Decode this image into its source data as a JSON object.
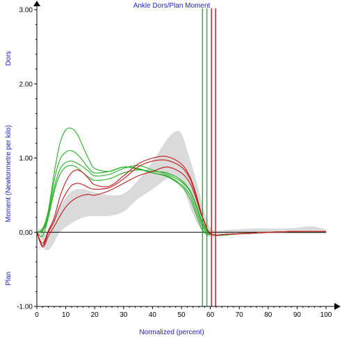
{
  "chart_data": {
    "type": "line",
    "title": "Ankle Dors/Plan Moment",
    "xlabel": "Normalized (percent)",
    "ylabel": "Moment (Newtonmetre per kilo)",
    "y_top_label": "Dors",
    "y_bottom_label": "Plan",
    "xlim": [
      0,
      100
    ],
    "ylim": [
      -1.0,
      3.0
    ],
    "x_ticks": [
      0,
      10,
      20,
      30,
      40,
      50,
      60,
      70,
      80,
      90,
      100
    ],
    "y_ticks": [
      -1.0,
      0.0,
      1.0,
      2.0,
      3.0
    ],
    "y_tick_labels": [
      "-1.00",
      "0.00",
      "1.00",
      "2.00",
      "3.00"
    ],
    "grid": false,
    "colors": {
      "green": "#22b022",
      "red": "#c01818",
      "band": "#dadada",
      "axis": "#000000",
      "text_blue": "#2020c8"
    },
    "normal_band": {
      "x": [
        0,
        2,
        3,
        5,
        8,
        12,
        16,
        20,
        25,
        30,
        35,
        40,
        45,
        48,
        50,
        52,
        55,
        58,
        60,
        62,
        65,
        70,
        75,
        80,
        85,
        90,
        95,
        100
      ],
      "upper": [
        0.02,
        0.05,
        -0.02,
        0.12,
        0.35,
        0.55,
        0.58,
        0.54,
        0.5,
        0.52,
        0.7,
        0.95,
        1.25,
        1.36,
        1.33,
        1.1,
        0.72,
        0.26,
        0.06,
        0.02,
        0.03,
        0.04,
        0.05,
        0.05,
        0.05,
        0.06,
        0.08,
        0.04
      ],
      "lower": [
        -0.02,
        -0.12,
        -0.24,
        -0.2,
        0.0,
        0.12,
        0.2,
        0.22,
        0.22,
        0.28,
        0.45,
        0.58,
        0.72,
        0.75,
        0.66,
        0.45,
        0.16,
        -0.03,
        -0.06,
        -0.06,
        -0.04,
        -0.03,
        -0.03,
        -0.02,
        -0.02,
        -0.02,
        -0.02,
        -0.02
      ]
    },
    "series": [
      {
        "color": "green",
        "x": [
          0,
          2,
          4,
          6,
          8,
          10,
          12,
          14,
          16,
          18,
          20,
          25,
          30,
          35,
          40,
          45,
          50,
          53,
          55,
          57,
          59,
          60,
          62,
          65,
          70,
          80,
          90,
          100
        ],
        "values": [
          0.0,
          0.05,
          0.3,
          0.8,
          1.2,
          1.38,
          1.4,
          1.32,
          1.15,
          0.98,
          0.86,
          0.82,
          0.88,
          0.85,
          0.8,
          0.75,
          0.62,
          0.45,
          0.25,
          0.05,
          -0.03,
          -0.02,
          -0.04,
          -0.03,
          -0.02,
          0.0,
          0.01,
          0.01
        ]
      },
      {
        "color": "green",
        "x": [
          0,
          2,
          4,
          6,
          8,
          10,
          12,
          14,
          16,
          18,
          20,
          25,
          30,
          35,
          40,
          45,
          50,
          53,
          55,
          57,
          59,
          60,
          62,
          65,
          70,
          80,
          90,
          100
        ],
        "values": [
          0.0,
          0.03,
          0.25,
          0.7,
          0.98,
          1.08,
          1.1,
          1.05,
          0.96,
          0.86,
          0.8,
          0.82,
          0.88,
          0.86,
          0.8,
          0.76,
          0.64,
          0.5,
          0.3,
          0.1,
          -0.02,
          -0.03,
          -0.04,
          -0.03,
          -0.02,
          0.0,
          0.01,
          0.01
        ]
      },
      {
        "color": "green",
        "x": [
          0,
          2,
          4,
          6,
          8,
          10,
          12,
          14,
          16,
          18,
          20,
          25,
          30,
          35,
          40,
          45,
          50,
          53,
          55,
          57,
          59,
          60,
          62,
          65,
          70,
          80,
          90,
          100
        ],
        "values": [
          0.0,
          0.02,
          0.2,
          0.6,
          0.85,
          0.94,
          0.96,
          0.93,
          0.88,
          0.82,
          0.76,
          0.78,
          0.86,
          0.9,
          0.84,
          0.78,
          0.68,
          0.55,
          0.36,
          0.14,
          0.0,
          -0.02,
          -0.04,
          -0.03,
          -0.02,
          0.0,
          0.01,
          0.01
        ]
      },
      {
        "color": "green",
        "x": [
          0,
          2,
          4,
          6,
          8,
          10,
          12,
          14,
          16,
          18,
          20,
          25,
          30,
          35,
          40,
          45,
          50,
          53,
          55,
          57,
          59,
          60,
          62,
          65,
          70,
          80,
          90,
          100
        ],
        "values": [
          0.0,
          -0.05,
          0.2,
          0.55,
          0.78,
          0.88,
          0.9,
          0.87,
          0.8,
          0.74,
          0.7,
          0.72,
          0.8,
          0.84,
          0.82,
          0.8,
          0.7,
          0.56,
          0.38,
          0.16,
          0.02,
          -0.02,
          -0.04,
          -0.04,
          -0.02,
          0.0,
          0.01,
          0.01
        ]
      },
      {
        "color": "red",
        "x": [
          0,
          2,
          4,
          6,
          8,
          10,
          12,
          14,
          16,
          18,
          20,
          25,
          30,
          35,
          40,
          45,
          50,
          53,
          55,
          57,
          59,
          60,
          62,
          65,
          70,
          80,
          90,
          100
        ],
        "values": [
          0.0,
          -0.15,
          0.02,
          0.2,
          0.48,
          0.68,
          0.8,
          0.84,
          0.8,
          0.72,
          0.64,
          0.62,
          0.76,
          0.92,
          1.0,
          1.02,
          0.92,
          0.74,
          0.52,
          0.24,
          0.03,
          -0.02,
          -0.04,
          -0.03,
          -0.02,
          0.0,
          0.01,
          0.01
        ]
      },
      {
        "color": "red",
        "x": [
          0,
          2,
          4,
          6,
          8,
          10,
          12,
          14,
          16,
          18,
          20,
          25,
          30,
          35,
          40,
          45,
          50,
          53,
          55,
          57,
          59,
          60,
          62,
          65,
          70,
          80,
          90,
          100
        ],
        "values": [
          0.0,
          -0.18,
          0.0,
          0.15,
          0.36,
          0.52,
          0.63,
          0.66,
          0.64,
          0.6,
          0.58,
          0.6,
          0.72,
          0.88,
          0.96,
          0.97,
          0.88,
          0.72,
          0.5,
          0.24,
          0.04,
          -0.02,
          -0.04,
          -0.03,
          -0.02,
          0.0,
          0.01,
          0.01
        ]
      },
      {
        "color": "red",
        "x": [
          0,
          2,
          4,
          6,
          8,
          10,
          12,
          14,
          16,
          18,
          20,
          25,
          30,
          35,
          40,
          45,
          50,
          53,
          55,
          57,
          59,
          60,
          62,
          65,
          70,
          80,
          90,
          100
        ],
        "values": [
          0.0,
          -0.2,
          -0.05,
          0.08,
          0.22,
          0.34,
          0.42,
          0.47,
          0.5,
          0.51,
          0.5,
          0.56,
          0.66,
          0.76,
          0.82,
          0.88,
          0.8,
          0.66,
          0.46,
          0.22,
          0.04,
          -0.02,
          -0.04,
          -0.03,
          -0.02,
          0.0,
          0.01,
          0.01
        ]
      }
    ],
    "event_lines": [
      {
        "color": "green",
        "x": 57.3
      },
      {
        "color": "green",
        "x": 58.8
      },
      {
        "color": "red",
        "x": 60.4
      },
      {
        "color": "red",
        "x": 61.8
      }
    ]
  }
}
